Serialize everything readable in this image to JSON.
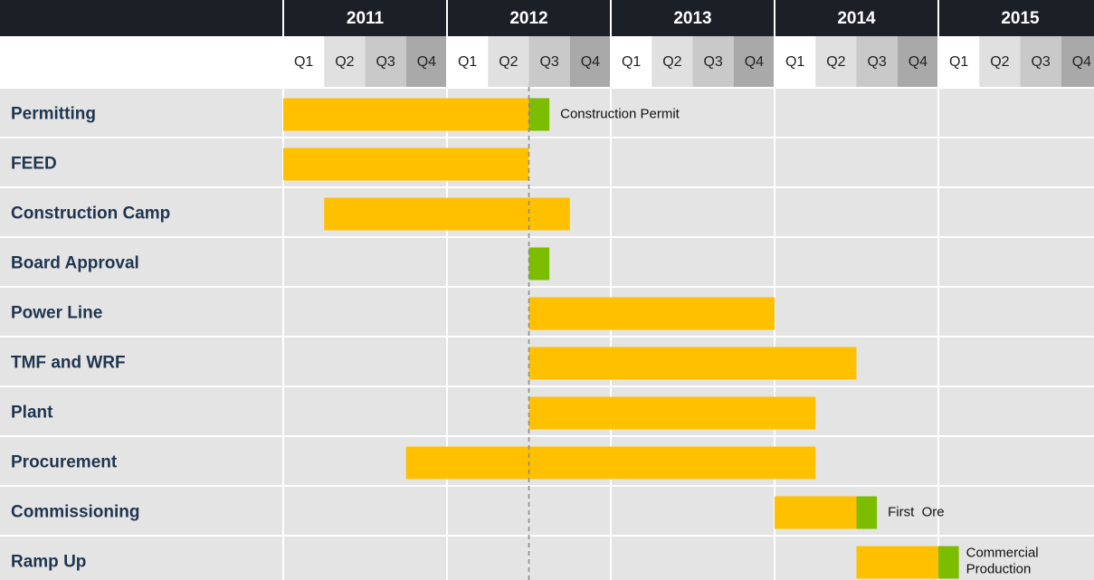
{
  "chart_data": {
    "type": "gantt",
    "xlim": [
      2011,
      2016
    ],
    "xticks": [
      2011,
      2012,
      2013,
      2014,
      2015
    ],
    "quarters": [
      "Q1",
      "Q2",
      "Q3",
      "Q4"
    ],
    "reference_line": 2012.5,
    "tasks": [
      {
        "label": "Permitting",
        "segments": [
          {
            "start": 2011,
            "end": 2012.5,
            "color": "#ffc000"
          },
          {
            "start": 2012.5,
            "end": 2012.625,
            "color": "#7cbd00"
          }
        ],
        "annotation": "Construction Permit"
      },
      {
        "label": "FEED",
        "segments": [
          {
            "start": 2011,
            "end": 2012.5,
            "color": "#ffc000"
          }
        ]
      },
      {
        "label": "Construction Camp",
        "segments": [
          {
            "start": 2011.25,
            "end": 2012.75,
            "color": "#ffc000"
          }
        ]
      },
      {
        "label": "Board Approval",
        "segments": [
          {
            "start": 2012.5,
            "end": 2012.625,
            "color": "#7cbd00"
          }
        ]
      },
      {
        "label": "Power Line",
        "segments": [
          {
            "start": 2012.5,
            "end": 2014,
            "color": "#ffc000"
          }
        ]
      },
      {
        "label": "TMF and WRF",
        "segments": [
          {
            "start": 2012.5,
            "end": 2014.5,
            "color": "#ffc000"
          }
        ]
      },
      {
        "label": "Plant",
        "segments": [
          {
            "start": 2012.5,
            "end": 2014.25,
            "color": "#ffc000"
          }
        ]
      },
      {
        "label": "Procurement",
        "segments": [
          {
            "start": 2011.75,
            "end": 2014.25,
            "color": "#ffc000"
          }
        ]
      },
      {
        "label": "Commissioning",
        "segments": [
          {
            "start": 2014,
            "end": 2014.5,
            "color": "#ffc000"
          },
          {
            "start": 2014.5,
            "end": 2014.625,
            "color": "#7cbd00"
          }
        ],
        "annotation": "First  Ore"
      },
      {
        "label": "Ramp Up",
        "segments": [
          {
            "start": 2014.5,
            "end": 2015,
            "color": "#ffc000"
          },
          {
            "start": 2015,
            "end": 2015.125,
            "color": "#7cbd00"
          }
        ],
        "annotation": [
          "Commercial",
          "Production"
        ]
      }
    ]
  }
}
